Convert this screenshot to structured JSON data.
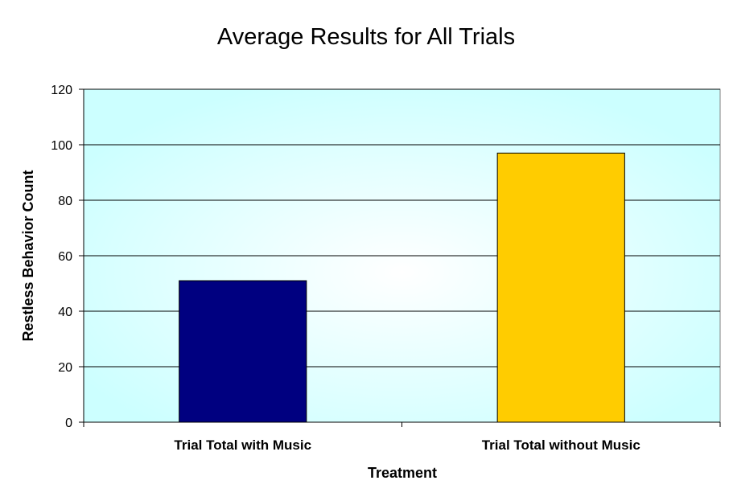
{
  "chart_data": {
    "type": "bar",
    "title": "Average Results for All Trials",
    "xlabel": "Treatment",
    "ylabel": "Restless Behavior Count",
    "categories": [
      "Trial Total with Music",
      "Trial Total without Music"
    ],
    "values": [
      51,
      97
    ],
    "ylim": [
      0,
      120
    ],
    "yticks": [
      0,
      20,
      40,
      60,
      80,
      100,
      120
    ],
    "grid": true,
    "legend": "none",
    "colors": [
      "#000080",
      "#FFCC00"
    ],
    "plot_background": "#CCFFFF"
  }
}
